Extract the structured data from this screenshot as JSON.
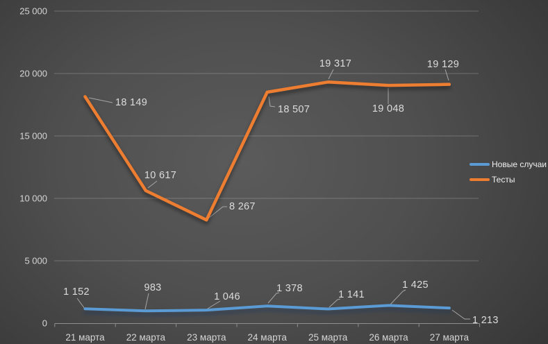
{
  "chart_data": {
    "type": "line",
    "categories": [
      "21 марта",
      "22 марта",
      "23 марта",
      "24 марта",
      "25 марта",
      "26 марта",
      "27 марта"
    ],
    "series": [
      {
        "name": "Новые случаи",
        "color": "#5B9BD5",
        "values": [
          1152,
          983,
          1046,
          1378,
          1141,
          1425,
          1213
        ],
        "labels": [
          "1 152",
          "983",
          "1 046",
          "1 378",
          "1 141",
          "1 425",
          "1 213"
        ]
      },
      {
        "name": "Тесты",
        "color": "#ED7D31",
        "values": [
          18149,
          10617,
          8267,
          18507,
          19317,
          19048,
          19129
        ],
        "labels": [
          "18 149",
          "10 617",
          "8 267",
          "18 507",
          "19 317",
          "19 048",
          "19 129"
        ]
      }
    ],
    "y_axis": {
      "ticks": [
        "0",
        "5 000",
        "10 000",
        "15 000",
        "20 000",
        "25 000"
      ],
      "tick_values": [
        0,
        5000,
        10000,
        15000,
        20000,
        25000
      ],
      "min": 0,
      "max": 25000
    },
    "grid": true,
    "legend_position": "right"
  },
  "colors": {
    "axis_text": "#D5D5D5",
    "data_label_text": "#DCDCDC",
    "gridline": "rgba(255,255,255,0.22)",
    "axis_line": "#8f8f8f",
    "leader_line": "#A6A6A6"
  }
}
